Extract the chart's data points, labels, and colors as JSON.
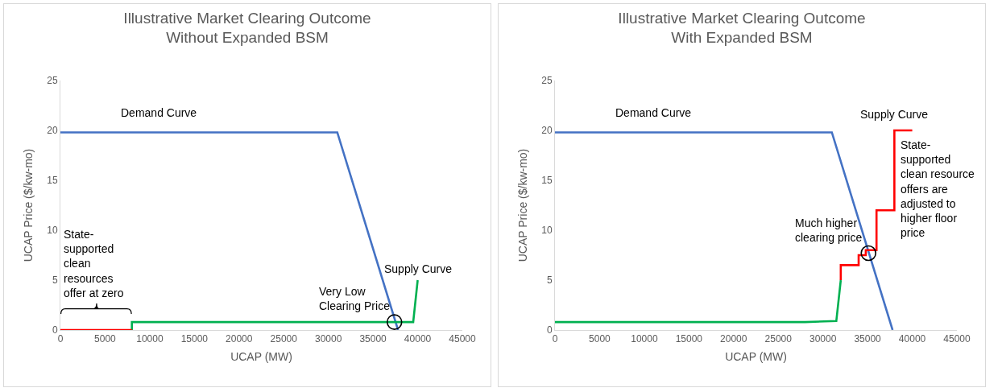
{
  "chart_data": [
    {
      "type": "line",
      "title": "Illustrative Market Clearing Outcome\nWithout Expanded BSM",
      "xlabel": "UCAP (MW)",
      "ylabel": "UCAP Price ($/kw-mo)",
      "series": [
        {
          "color": "#4472c4",
          "x": [
            0,
            31000,
            37800
          ],
          "values": [
            19.8,
            19.8,
            0
          ]
        },
        {
          "color": "#00b050",
          "x": [
            8000,
            8000,
            39500,
            40000
          ],
          "values": [
            0,
            0.8,
            0.8,
            5
          ]
        },
        {
          "color": "#ff0000",
          "x": [
            0,
            8000
          ],
          "values": [
            0,
            0
          ]
        }
      ],
      "xlim": [
        0,
        45000
      ],
      "xticks": [
        0,
        5000,
        10000,
        15000,
        20000,
        25000,
        30000,
        35000,
        40000,
        45000
      ],
      "ylim": [
        0,
        25
      ],
      "yticks": [
        0,
        5,
        10,
        15,
        20,
        25
      ],
      "grid": false,
      "marker": "none",
      "line_style": "solid",
      "annotations": [
        {
          "text": "Demand Curve",
          "x": 11000,
          "y": 19.8
        },
        {
          "text": "Supply Curve",
          "x": 40000,
          "y": 5
        },
        {
          "text": "Very Low\nClearing Price",
          "x": 37400,
          "y": 0.8
        },
        {
          "text": "State-\nsupported\nclean\nresources\noffer at zero",
          "x": 4000,
          "y": 0
        }
      ]
    },
    {
      "type": "line",
      "title": "Illustrative Market Clearing Outcome\nWith Expanded BSM",
      "xlabel": "UCAP (MW)",
      "ylabel": "UCAP Price ($/kw-mo)",
      "series": [
        {
          "color": "#4472c4",
          "x": [
            0,
            31000,
            37800
          ],
          "values": [
            19.8,
            19.8,
            0
          ]
        },
        {
          "color": "#00b050",
          "x": [
            0,
            28000,
            31500,
            32000
          ],
          "values": [
            0.8,
            0.8,
            0.9,
            5
          ]
        },
        {
          "color": "#ff0000",
          "x": [
            32000,
            32000,
            34000,
            34000,
            34800,
            34800,
            36000,
            36000,
            38000,
            38000,
            40000
          ],
          "values": [
            5,
            6.5,
            6.5,
            7.5,
            7.5,
            8,
            8,
            12,
            12,
            20,
            20
          ]
        }
      ],
      "xlim": [
        0,
        45000
      ],
      "xticks": [
        0,
        5000,
        10000,
        15000,
        20000,
        25000,
        30000,
        35000,
        40000,
        45000
      ],
      "ylim": [
        0,
        25
      ],
      "yticks": [
        0,
        5,
        10,
        15,
        20,
        25
      ],
      "grid": false,
      "marker": "none",
      "line_style": "solid",
      "annotations": [
        {
          "text": "Demand Curve",
          "x": 11000,
          "y": 19.8
        },
        {
          "text": "Supply Curve",
          "x": 38000,
          "y": 20
        },
        {
          "text": "State-\nsupported\nclean resource\noffers are\nadjusted to\nhigher floor\nprice",
          "x": 38000,
          "y": 20
        },
        {
          "text": "Much higher\nclearing price",
          "x": 35100,
          "y": 7.7
        }
      ]
    }
  ]
}
